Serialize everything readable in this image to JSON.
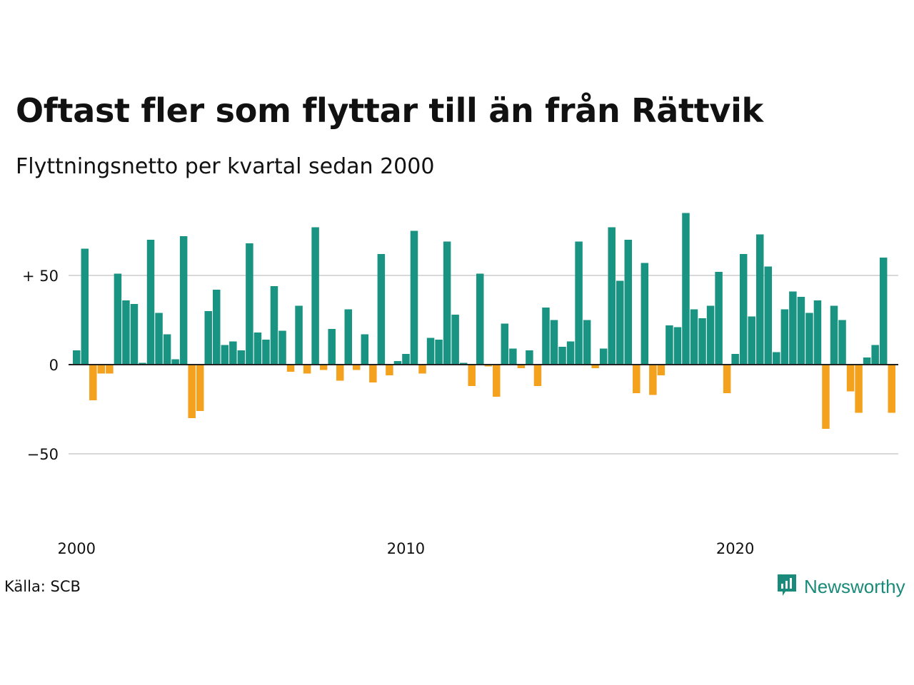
{
  "title": "Oftast fler som flyttar till än från Rättvik",
  "subtitle": "Flyttningsnetto per kvartal sedan 2000",
  "source": "Källa: SCB",
  "brand": {
    "name": "Newsworthy",
    "icon": "newsworthy-logo-icon"
  },
  "colors": {
    "positive": "#1a9482",
    "negative": "#f4a11e",
    "grid": "#d9d9d9",
    "zero_line": "#222222"
  },
  "chart_data": {
    "type": "bar",
    "ylabel": "",
    "xlabel": "",
    "ylim": [
      -75,
      85
    ],
    "yticks": [
      {
        "value": 50,
        "label": "+ 50"
      },
      {
        "value": 0,
        "label": "0"
      },
      {
        "value": -50,
        "label": "−50"
      }
    ],
    "xticks": [
      {
        "index": 0,
        "label": "2000"
      },
      {
        "index": 40,
        "label": "2010"
      },
      {
        "index": 80,
        "label": "2020"
      }
    ],
    "grid": true,
    "legend": "none",
    "x_start": "2000 Q1",
    "values": [
      8,
      65,
      -20,
      -5,
      -5,
      51,
      36,
      34,
      1,
      70,
      29,
      17,
      3,
      72,
      -30,
      -26,
      30,
      42,
      11,
      13,
      8,
      68,
      18,
      14,
      44,
      19,
      -4,
      33,
      -5,
      77,
      -3,
      20,
      -9,
      31,
      -3,
      17,
      -10,
      62,
      -6,
      2,
      6,
      75,
      -5,
      15,
      14,
      69,
      28,
      1,
      -12,
      51,
      -1,
      -18,
      23,
      9,
      -2,
      8,
      -12,
      32,
      25,
      10,
      13,
      69,
      25,
      -2,
      9,
      77,
      47,
      70,
      -16,
      57,
      -17,
      -6,
      22,
      21,
      85,
      31,
      26,
      33,
      52,
      -16,
      6,
      62,
      27,
      73,
      55,
      7,
      31,
      41,
      38,
      29,
      36,
      -36,
      33,
      25,
      -15,
      -27,
      4,
      11,
      60,
      -27
    ]
  }
}
